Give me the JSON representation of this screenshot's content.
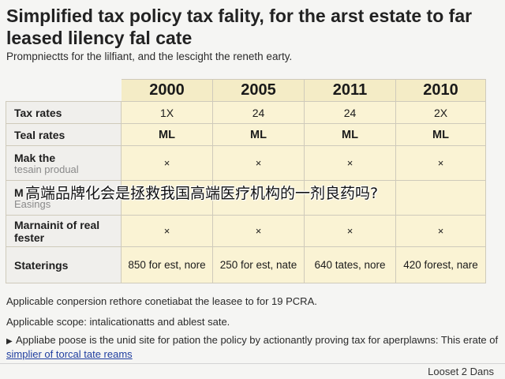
{
  "title": "Simplified tax policy tax fality, for the arst estate to far leased lilency fal cate",
  "subtitle": "Prompniectts for the lilfiant, and the lescight the reneth earty.",
  "table": {
    "years": [
      "2000",
      "2005",
      "2011",
      "2010"
    ],
    "rows": [
      {
        "label": "Tax rates",
        "values": [
          "1X",
          "24",
          "24",
          "2X"
        ]
      },
      {
        "label": "Teal rates",
        "values": [
          "ML",
          "ML",
          "ML",
          "ML"
        ]
      },
      {
        "label": "Mak the",
        "sublabel": "tesain produal",
        "values": [
          "×",
          "×",
          "×",
          "×"
        ]
      },
      {
        "label": "M",
        "sublabel": "Easings",
        "values": [
          "",
          "",
          "",
          ""
        ]
      },
      {
        "label": "Marnainit of real fester",
        "values": [
          "×",
          "×",
          "×",
          "×"
        ]
      },
      {
        "label": "Staterings",
        "values": [
          "850 for est, nore",
          "250 for est, nate",
          "640 tates, nore",
          "420 forest, nare"
        ]
      }
    ]
  },
  "notes": {
    "line1": "Applicable conpersion rethore conetiabat the leasee to for 19 PCRA.",
    "line2": "Applicable scope: intalicationatts and ablest sate.",
    "line3_prefix": "Appliabe poose is the unid site for pation the policy by actionantly proving tax for aperplawns: This erate of",
    "line3_link": "simplier of torcal tate reams"
  },
  "footer": "Looset 2 Dans",
  "overlay_caption": "高端品牌化会是拯救我国高端医疗机构的一剂良药吗?"
}
